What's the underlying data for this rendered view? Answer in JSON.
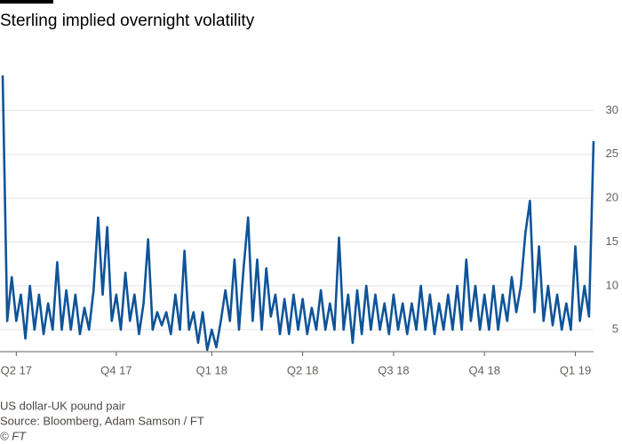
{
  "chart_data": {
    "type": "line",
    "title": "Sterling implied overnight volatility",
    "notes": [
      "US dollar-UK pound pair",
      "Source: Bloomberg, Adam Samson / FT",
      "© FT"
    ],
    "color": "#0f5499",
    "grid": true,
    "values": [
      34,
      6,
      11,
      6,
      9,
      4,
      10,
      5,
      9,
      4.5,
      8,
      5,
      12.7,
      5,
      9.5,
      5,
      9,
      4.5,
      7.5,
      5,
      9.5,
      17.8,
      9,
      16.7,
      6,
      9,
      5,
      11.5,
      6,
      9,
      4.5,
      8,
      15.3,
      5,
      7,
      5.5,
      7,
      4.5,
      9,
      5,
      14,
      5,
      7,
      3.5,
      7,
      2.7,
      5,
      3,
      6,
      9.5,
      6,
      13,
      5,
      12,
      17.8,
      6,
      13,
      5,
      12,
      6.5,
      9,
      4.5,
      8.5,
      4.5,
      9,
      5,
      8.5,
      4.5,
      7.5,
      5,
      9.5,
      5,
      8,
      5,
      15.5,
      5,
      9,
      3.5,
      9.5,
      4.5,
      10,
      5,
      9,
      5,
      8,
      4.5,
      9,
      5,
      8,
      4.5,
      8,
      5,
      10,
      5,
      9,
      4.5,
      8,
      5,
      9,
      5,
      10,
      5,
      13,
      6,
      10,
      5,
      9,
      5,
      10,
      5,
      9,
      6,
      11,
      7,
      10,
      16,
      19.7,
      7,
      14.5,
      6,
      10,
      5.5,
      9,
      5,
      8,
      5,
      14.5,
      6,
      10,
      6.5,
      26.5
    ],
    "xlim": [
      0,
      130
    ],
    "xticks": [
      {
        "value": 3,
        "label": "Q2 17"
      },
      {
        "value": 25,
        "label": "Q4 17"
      },
      {
        "value": 46,
        "label": "Q1 18"
      },
      {
        "value": 66,
        "label": "Q2 18"
      },
      {
        "value": 86,
        "label": "Q3 18"
      },
      {
        "value": 106,
        "label": "Q4 18"
      },
      {
        "value": 126,
        "label": "Q1 19"
      }
    ],
    "ylim": [
      2.5,
      35
    ],
    "yticks": [
      5,
      10,
      15,
      20,
      25,
      30
    ]
  }
}
